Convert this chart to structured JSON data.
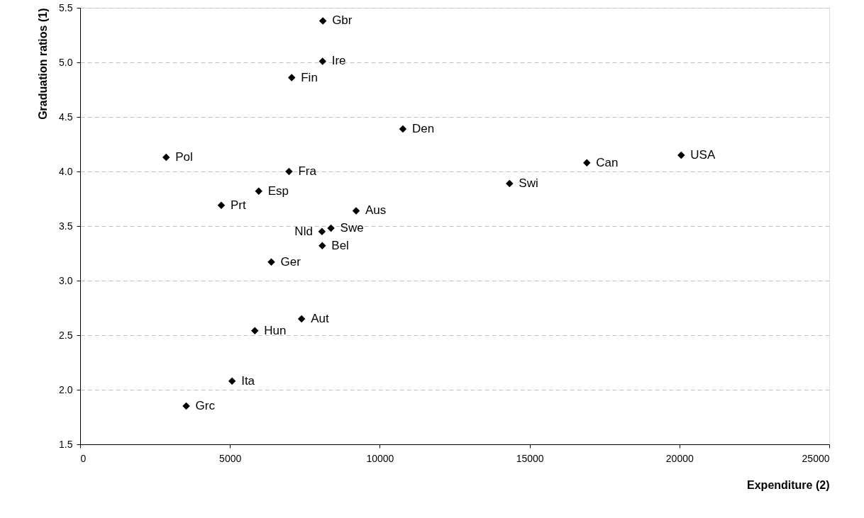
{
  "chart_data": {
    "type": "scatter",
    "xlabel": "Expenditure (2)",
    "ylabel": "Graduation ratios (1)",
    "series": [
      {
        "color": "#000000",
        "x": [
          8100,
          8090,
          7060,
          10770,
          2870,
          6970,
          5960,
          4710,
          9210,
          8070,
          8370,
          8080,
          6380,
          7390,
          5830,
          5070,
          3540,
          14330,
          16910,
          20060
        ],
        "values": [
          5.38,
          5.01,
          4.86,
          4.39,
          4.13,
          4.0,
          3.82,
          3.69,
          3.64,
          3.45,
          3.48,
          3.32,
          3.17,
          2.65,
          2.54,
          2.08,
          1.85,
          3.89,
          4.08,
          4.15
        ]
      }
    ],
    "annotations": [
      {
        "text": "Gbr",
        "x": 8100,
        "y": 5.38
      },
      {
        "text": "Ire",
        "x": 8090,
        "y": 5.01
      },
      {
        "text": "Fin",
        "x": 7060,
        "y": 4.86
      },
      {
        "text": "Den",
        "x": 10770,
        "y": 4.39
      },
      {
        "text": "Pol",
        "x": 2870,
        "y": 4.13
      },
      {
        "text": "Fra",
        "x": 6970,
        "y": 4.0
      },
      {
        "text": "Esp",
        "x": 5960,
        "y": 3.82
      },
      {
        "text": "Prt",
        "x": 4710,
        "y": 3.69
      },
      {
        "text": "Aus",
        "x": 9210,
        "y": 3.64
      },
      {
        "text": "Nld",
        "x": 8070,
        "y": 3.45
      },
      {
        "text": "Swe",
        "x": 8370,
        "y": 3.48
      },
      {
        "text": "Bel",
        "x": 8080,
        "y": 3.32
      },
      {
        "text": "Ger",
        "x": 6380,
        "y": 3.17
      },
      {
        "text": "Aut",
        "x": 7390,
        "y": 2.65
      },
      {
        "text": "Hun",
        "x": 5830,
        "y": 2.54
      },
      {
        "text": "Ita",
        "x": 5070,
        "y": 2.08
      },
      {
        "text": "Grc",
        "x": 3540,
        "y": 1.85
      },
      {
        "text": "Swi",
        "x": 14330,
        "y": 3.89
      },
      {
        "text": "Can",
        "x": 16910,
        "y": 4.08
      },
      {
        "text": "USA",
        "x": 20060,
        "y": 4.15
      }
    ],
    "xlim": [
      0,
      25000
    ],
    "xticks": [
      0,
      5000,
      10000,
      15000,
      20000,
      25000
    ],
    "ylim": [
      1.5,
      5.5
    ],
    "yticks": [
      1.5,
      {
        "value": 2,
        "label": "2.0"
      },
      2.5,
      {
        "value": 3,
        "label": "3.0"
      },
      3.5,
      {
        "value": 4,
        "label": "4.0"
      },
      4.5,
      {
        "value": 5,
        "label": "5.0"
      },
      5.5
    ],
    "grid": "y",
    "marker": "diamond"
  }
}
